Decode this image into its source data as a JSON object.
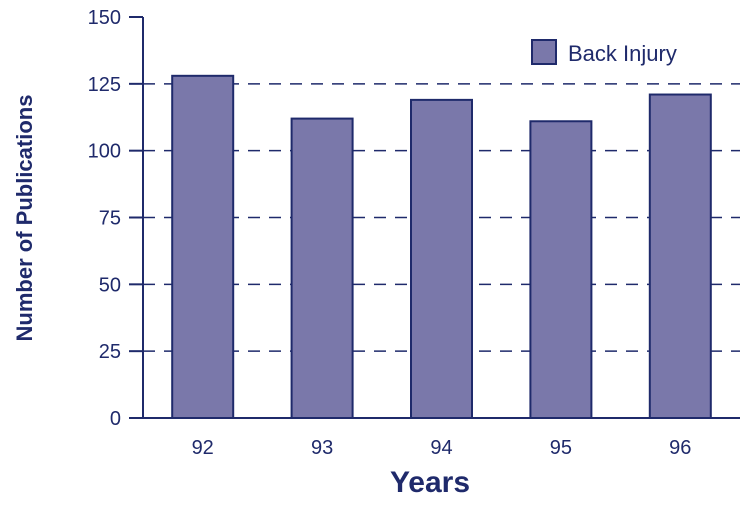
{
  "chart_data": {
    "type": "bar",
    "categories": [
      "92",
      "93",
      "94",
      "95",
      "96"
    ],
    "series": [
      {
        "name": "Back Injury",
        "values": [
          128,
          112,
          119,
          111,
          121
        ]
      }
    ],
    "title": "",
    "xlabel": "Years",
    "ylabel": "Number of Publications",
    "ylim": [
      0,
      150
    ],
    "yticks": [
      0,
      25,
      50,
      75,
      100,
      125,
      150
    ],
    "grid": "dashed-horizontal",
    "legend": "top-right"
  },
  "colors": {
    "bar_fill": "#7a78aa",
    "bar_stroke": "#1f2a6b",
    "axis": "#1f2a6b",
    "text": "#1f2a6b"
  }
}
